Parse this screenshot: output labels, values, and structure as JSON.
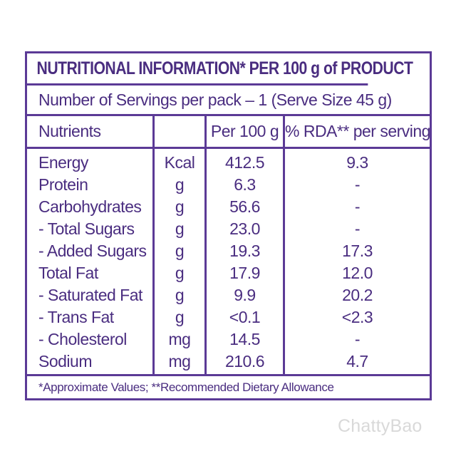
{
  "label": {
    "title": "NUTRITIONAL INFORMATION* PER 100 g of PRODUCT",
    "serving_line": "Number of Servings per pack – 1 (Serve Size 45 g)",
    "headers": {
      "nutrients": "Nutrients",
      "unit": "",
      "per100": "Per 100 g",
      "rda": "% RDA** per serving"
    },
    "rows": [
      {
        "name": "Energy",
        "unit": "Kcal",
        "per100": "412.5",
        "rda": "9.3"
      },
      {
        "name": "Protein",
        "unit": "g",
        "per100": "6.3",
        "rda": "-"
      },
      {
        "name": "Carbohydrates",
        "unit": "g",
        "per100": "56.6",
        "rda": "-"
      },
      {
        "name": "- Total Sugars",
        "unit": "g",
        "per100": "23.0",
        "rda": "-"
      },
      {
        "name": "- Added Sugars",
        "unit": "g",
        "per100": "19.3",
        "rda": "17.3"
      },
      {
        "name": "Total Fat",
        "unit": "g",
        "per100": "17.9",
        "rda": "12.0"
      },
      {
        "name": "- Saturated Fat",
        "unit": "g",
        "per100": "9.9",
        "rda": "20.2"
      },
      {
        "name": "- Trans Fat",
        "unit": "g",
        "per100": "<0.1",
        "rda": "<2.3"
      },
      {
        "name": "- Cholesterol",
        "unit": "mg",
        "per100": "14.5",
        "rda": "-"
      },
      {
        "name": "Sodium",
        "unit": "mg",
        "per100": "210.6",
        "rda": "4.7"
      }
    ],
    "footnote": "*Approximate Values;  **Recommended Dietary Allowance"
  },
  "watermark": "ChattyBao",
  "colors": {
    "accent": "#5b3a96",
    "text": "#4a2d80"
  }
}
